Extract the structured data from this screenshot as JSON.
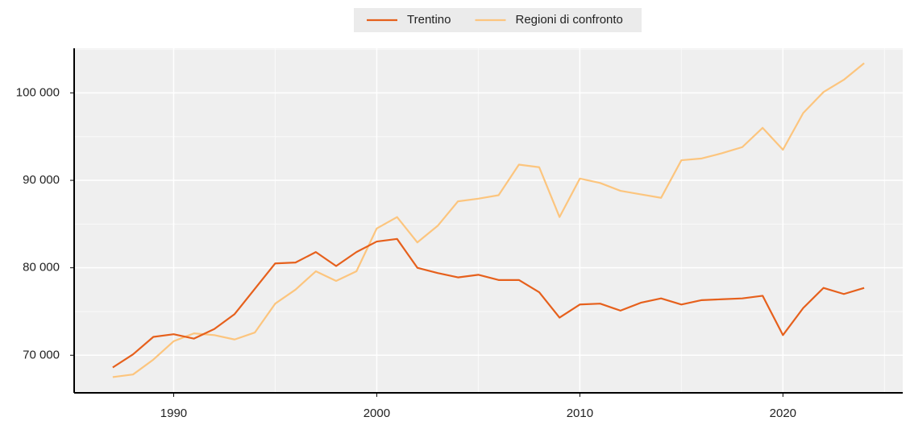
{
  "chart_data": {
    "type": "line",
    "x": [
      1987,
      1988,
      1989,
      1990,
      1991,
      1992,
      1993,
      1994,
      1995,
      1996,
      1997,
      1998,
      1999,
      2000,
      2001,
      2002,
      2003,
      2004,
      2005,
      2006,
      2007,
      2008,
      2009,
      2010,
      2011,
      2012,
      2013,
      2014,
      2015,
      2016,
      2017,
      2018,
      2019,
      2020,
      2021,
      2022,
      2023,
      2024
    ],
    "series": [
      {
        "name": "Trentino",
        "color": "#e6601c",
        "values": [
          68600,
          70100,
          72100,
          72400,
          71900,
          73000,
          74700,
          77600,
          80500,
          80600,
          81800,
          80200,
          81800,
          83000,
          83300,
          80000,
          79400,
          78900,
          79200,
          78600,
          78600,
          77200,
          74300,
          75800,
          75900,
          75100,
          76000,
          76500,
          75800,
          76300,
          76400,
          76500,
          76800,
          72300,
          75400,
          77700,
          77000,
          77700
        ]
      },
      {
        "name": "Regioni di confronto",
        "color": "#fcc57e",
        "values": [
          67500,
          67800,
          69500,
          71600,
          72500,
          72300,
          71800,
          72600,
          75900,
          77500,
          79600,
          78500,
          79600,
          84500,
          85800,
          82900,
          84800,
          87600,
          87900,
          88300,
          91800,
          91500,
          85800,
          90200,
          89700,
          88800,
          88400,
          88000,
          92300,
          92500,
          93100,
          93800,
          96000,
          93500,
          97700,
          100100,
          101500,
          103400
        ]
      }
    ],
    "xlim": [
      1985.1,
      2025.9
    ],
    "xticks": [
      1990,
      2000,
      2010,
      2020
    ],
    "ylim": [
      65700,
      105100
    ],
    "yticks": [
      {
        "value": 70000,
        "label": "70 000"
      },
      {
        "value": 80000,
        "label": "80 000"
      },
      {
        "value": 90000,
        "label": "90 000"
      },
      {
        "value": 100000,
        "label": "100 000"
      }
    ],
    "grid": true
  }
}
